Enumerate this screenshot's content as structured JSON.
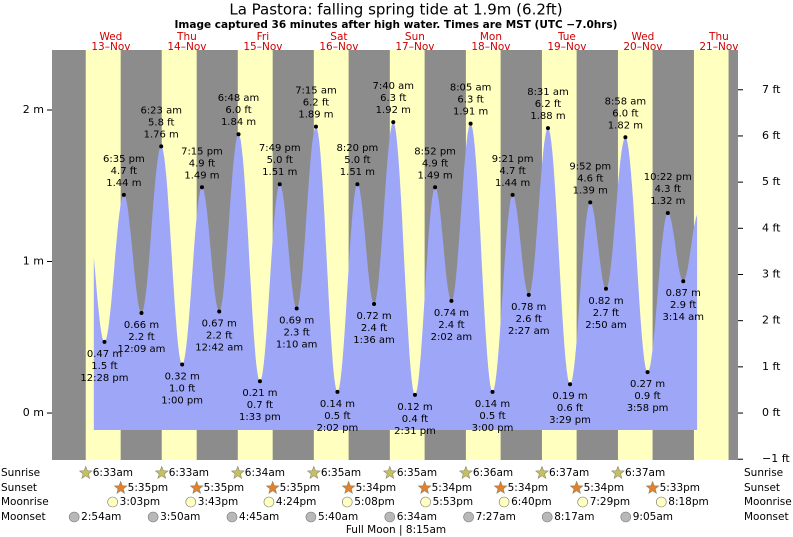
{
  "chart_data": {
    "type": "tide",
    "title": "La Pastora: falling  spring tide at 1.9m (6.2ft)",
    "subtitle": "Image captured 36 minutes after high water. Times are MST (UTC −7.0hrs)",
    "days": [
      {
        "name": "Wed",
        "date": "13–Nov"
      },
      {
        "name": "Thu",
        "date": "14–Nov"
      },
      {
        "name": "Fri",
        "date": "15–Nov"
      },
      {
        "name": "Sat",
        "date": "16–Nov"
      },
      {
        "name": "Sun",
        "date": "17–Nov"
      },
      {
        "name": "Mon",
        "date": "18–Nov"
      },
      {
        "name": "Tue",
        "date": "19–Nov"
      },
      {
        "name": "Wed",
        "date": "20–Nov"
      },
      {
        "name": "Thu",
        "date": "21–Nov"
      }
    ],
    "tides": [
      {
        "time": "12:28 pm",
        "height": 0.47,
        "height_label": "0.47 m",
        "ft_label": "1.5 ft"
      },
      {
        "time": "6:35 pm",
        "height": 1.44,
        "height_label": "1.44 m",
        "ft_label": "4.7 ft"
      },
      {
        "time": "12:09 am",
        "height": 0.66,
        "height_label": "0.66 m",
        "ft_label": "2.2 ft"
      },
      {
        "time": "6:23 am",
        "height": 1.76,
        "height_label": "1.76 m",
        "ft_label": "5.8 ft"
      },
      {
        "time": "1:00 pm",
        "height": 0.32,
        "height_label": "0.32 m",
        "ft_label": "1.0 ft"
      },
      {
        "time": "7:15 pm",
        "height": 1.49,
        "height_label": "1.49 m",
        "ft_label": "4.9 ft"
      },
      {
        "time": "12:42 am",
        "height": 0.67,
        "height_label": "0.67 m",
        "ft_label": "2.2 ft"
      },
      {
        "time": "6:48 am",
        "height": 1.84,
        "height_label": "1.84 m",
        "ft_label": "6.0 ft"
      },
      {
        "time": "1:33 pm",
        "height": 0.21,
        "height_label": "0.21 m",
        "ft_label": "0.7 ft"
      },
      {
        "time": "7:49 pm",
        "height": 1.51,
        "height_label": "1.51 m",
        "ft_label": "5.0 ft"
      },
      {
        "time": "1:10 am",
        "height": 0.69,
        "height_label": "0.69 m",
        "ft_label": "2.3 ft"
      },
      {
        "time": "7:15 am",
        "height": 1.89,
        "height_label": "1.89 m",
        "ft_label": "6.2 ft"
      },
      {
        "time": "2:02 pm",
        "height": 0.14,
        "height_label": "0.14 m",
        "ft_label": "0.5 ft"
      },
      {
        "time": "8:20 pm",
        "height": 1.51,
        "height_label": "1.51 m",
        "ft_label": "5.0 ft"
      },
      {
        "time": "1:36 am",
        "height": 0.72,
        "height_label": "0.72 m",
        "ft_label": "2.4 ft"
      },
      {
        "time": "7:40 am",
        "height": 1.92,
        "height_label": "1.92 m",
        "ft_label": "6.3 ft"
      },
      {
        "time": "2:31 pm",
        "height": 0.12,
        "height_label": "0.12 m",
        "ft_label": "0.4 ft"
      },
      {
        "time": "8:52 pm",
        "height": 1.49,
        "height_label": "1.49 m",
        "ft_label": "4.9 ft"
      },
      {
        "time": "2:02 am",
        "height": 0.74,
        "height_label": "0.74 m",
        "ft_label": "2.4 ft"
      },
      {
        "time": "8:05 am",
        "height": 1.91,
        "height_label": "1.91 m",
        "ft_label": "6.3 ft"
      },
      {
        "time": "3:00 pm",
        "height": 0.14,
        "height_label": "0.14 m",
        "ft_label": "0.5 ft"
      },
      {
        "time": "9:21 pm",
        "height": 1.44,
        "height_label": "1.44 m",
        "ft_label": "4.7 ft"
      },
      {
        "time": "2:27 am",
        "height": 0.78,
        "height_label": "0.78 m",
        "ft_label": "2.6 ft"
      },
      {
        "time": "8:31 am",
        "height": 1.88,
        "height_label": "1.88 m",
        "ft_label": "6.2 ft"
      },
      {
        "time": "3:29 pm",
        "height": 0.19,
        "height_label": "0.19 m",
        "ft_label": "0.6 ft"
      },
      {
        "time": "9:52 pm",
        "height": 1.39,
        "height_label": "1.39 m",
        "ft_label": "4.6 ft"
      },
      {
        "time": "2:50 am",
        "height": 0.82,
        "height_label": "0.82 m",
        "ft_label": "2.7 ft"
      },
      {
        "time": "8:58 am",
        "height": 1.82,
        "height_label": "1.82 m",
        "ft_label": "6.0 ft"
      },
      {
        "time": "3:58 pm",
        "height": 0.27,
        "height_label": "0.27 m",
        "ft_label": "0.9 ft"
      },
      {
        "time": "10:22 pm",
        "height": 1.32,
        "height_label": "1.32 m",
        "ft_label": "4.3 ft"
      },
      {
        "time": "3:14 am",
        "height": 0.87,
        "height_label": "0.87 m",
        "ft_label": "2.9 ft"
      }
    ],
    "ylim": [
      -0.31,
      2.396
    ],
    "yticks": [
      {
        "value": 0,
        "label": "0 m"
      },
      {
        "value": 1,
        "label": "1 m"
      },
      {
        "value": 2,
        "label": "2 m"
      }
    ],
    "y2lim": [
      -1.017,
      7.861
    ],
    "y2ticks": [
      {
        "value": -1,
        "label": "−1 ft"
      },
      {
        "value": 0,
        "label": "0 ft"
      },
      {
        "value": 1,
        "label": "1 ft"
      },
      {
        "value": 2,
        "label": "2 ft"
      },
      {
        "value": 3,
        "label": "3 ft"
      },
      {
        "value": 4,
        "label": "4 ft"
      },
      {
        "value": 5,
        "label": "5 ft"
      },
      {
        "value": 6,
        "label": "6 ft"
      },
      {
        "value": 7,
        "label": "7 ft"
      }
    ],
    "water_color": "#9ea6f7",
    "day_color": "#ffffc0",
    "night_color": "#8c8c8c",
    "rows": [
      {
        "label": "Sunrise",
        "times": [
          "6:33am",
          "6:33am",
          "6:34am",
          "6:35am",
          "6:35am",
          "6:36am",
          "6:37am",
          "6:37am"
        ]
      },
      {
        "label": "Sunset",
        "times": [
          "5:35pm",
          "5:35pm",
          "5:35pm",
          "5:34pm",
          "5:34pm",
          "5:34pm",
          "5:34pm",
          "5:33pm"
        ]
      },
      {
        "label": "Moonrise",
        "times": [
          "3:03pm",
          "3:43pm",
          "4:24pm",
          "5:08pm",
          "5:53pm",
          "6:40pm",
          "7:29pm",
          "8:18pm"
        ]
      },
      {
        "label": "Moonset",
        "times": [
          "2:54am",
          "3:50am",
          "4:45am",
          "5:40am",
          "6:34am",
          "7:27am",
          "8:17am",
          "9:05am"
        ]
      }
    ],
    "footer": "Full Moon | 8:15am"
  }
}
